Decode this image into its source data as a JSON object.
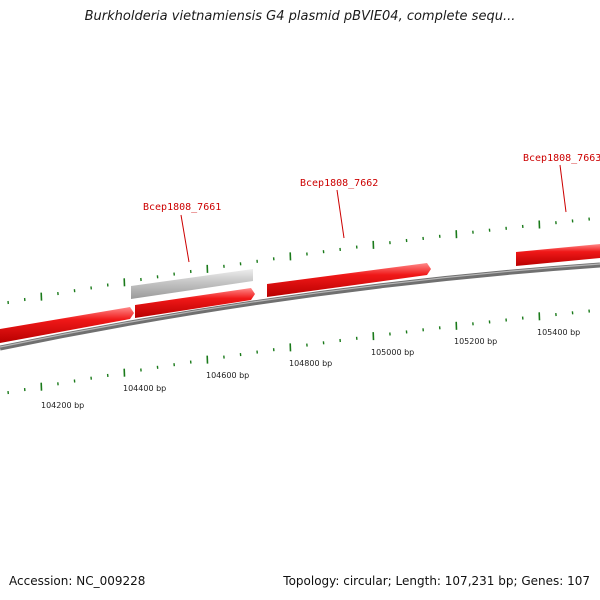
{
  "title": "Burkholderia vietnamiensis G4 plasmid pBVIE04, complete sequ...",
  "footer": {
    "accession": "Accession: NC_009228",
    "summary": "Topology: circular; Length: 107,231 bp; Genes: 107"
  },
  "colors": {
    "gene_forward": "#e81010",
    "gene_highlight": "#c4c4c4",
    "backbone": "#808080",
    "ticks": "#1a7a1a",
    "label": "#cc0000"
  },
  "genes": [
    {
      "name": "",
      "track": "lower",
      "start": 103600,
      "end": 104380,
      "color": "red"
    },
    {
      "name": "Bcep1808_7661",
      "track": "upper",
      "start": 104390,
      "end": 104680,
      "color": "grey"
    },
    {
      "name": "",
      "track": "lower",
      "start": 104390,
      "end": 104680,
      "color": "red"
    },
    {
      "name": "Bcep1808_7662",
      "track": "lower",
      "start": 104700,
      "end": 105060,
      "color": "red"
    },
    {
      "name": "Bcep1808_7663",
      "track": "lower",
      "start": 105350,
      "end": 105800,
      "color": "red"
    }
  ],
  "scale_labels": [
    "104200 bp",
    "104400 bp",
    "104600 bp",
    "104800 bp",
    "105000 bp",
    "105200 bp",
    "105400 bp"
  ]
}
